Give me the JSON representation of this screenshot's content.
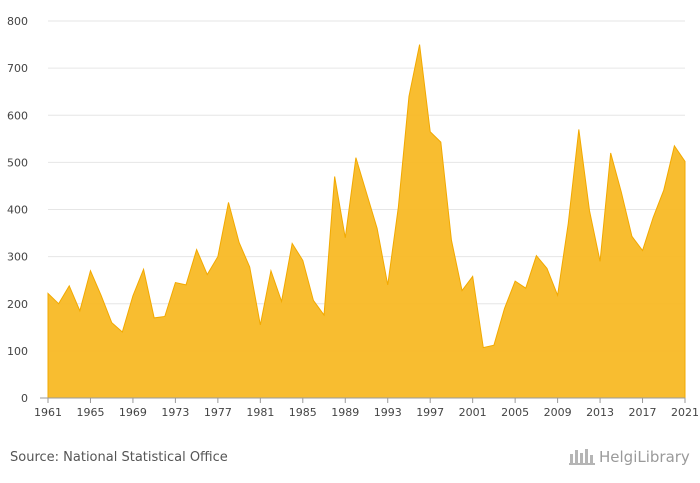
{
  "chart_data": {
    "type": "area",
    "title": "",
    "xlabel": "",
    "ylabel": "",
    "ylim": [
      0,
      800
    ],
    "xlim": [
      1961,
      2021
    ],
    "yticks": [
      0,
      100,
      200,
      300,
      400,
      500,
      600,
      700,
      800
    ],
    "xticks": [
      1961,
      1965,
      1969,
      1973,
      1977,
      1981,
      1985,
      1989,
      1993,
      1997,
      2001,
      2005,
      2009,
      2013,
      2017,
      2021
    ],
    "grid": true,
    "legend": "none",
    "series": [
      {
        "color": "#f8b820",
        "x": [
          1961,
          1962,
          1963,
          1964,
          1965,
          1966,
          1967,
          1968,
          1969,
          1970,
          1971,
          1972,
          1973,
          1974,
          1975,
          1976,
          1977,
          1978,
          1979,
          1980,
          1981,
          1982,
          1983,
          1984,
          1985,
          1986,
          1987,
          1988,
          1989,
          1990,
          1991,
          1992,
          1993,
          1994,
          1995,
          1996,
          1997,
          1998,
          1999,
          2000,
          2001,
          2002,
          2003,
          2004,
          2005,
          2006,
          2007,
          2008,
          2009,
          2010,
          2011,
          2012,
          2013,
          2014,
          2015,
          2016,
          2017,
          2018,
          2019,
          2020,
          2021
        ],
        "values": [
          222,
          200,
          238,
          185,
          270,
          218,
          160,
          140,
          217,
          273,
          170,
          173,
          245,
          240,
          315,
          262,
          300,
          415,
          330,
          278,
          155,
          270,
          205,
          328,
          292,
          207,
          176,
          470,
          340,
          510,
          435,
          360,
          240,
          405,
          640,
          750,
          565,
          543,
          335,
          228,
          258,
          107,
          112,
          190,
          248,
          233,
          302,
          275,
          218,
          370,
          570,
          398,
          290,
          520,
          437,
          343,
          313,
          383,
          441,
          535,
          502
        ]
      }
    ]
  },
  "source": "Source: National Statistical Office",
  "brand": {
    "text": "HelgiLibrary",
    "icon": "helgi-library-logo-icon",
    "color": "#9a9a9a"
  }
}
